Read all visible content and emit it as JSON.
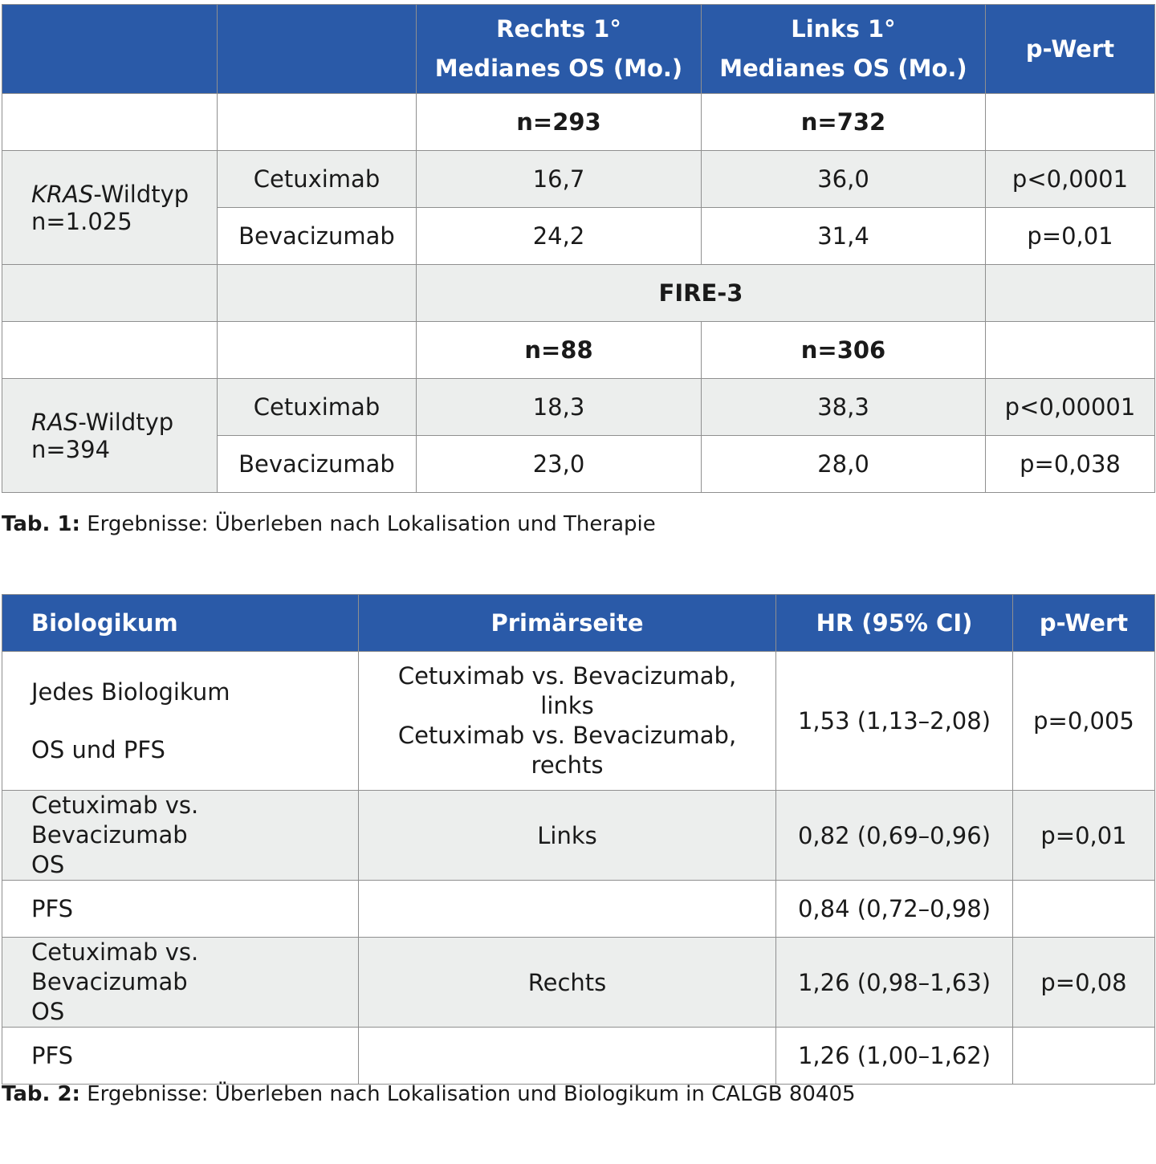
{
  "table1": {
    "header": {
      "col1": "",
      "col2": "",
      "col3_line1": "Rechts 1°",
      "col3_line2": "Medianes OS (Mo.)",
      "col4_line1": "Links 1°",
      "col4_line2": "Medianes OS (Mo.)",
      "col5": "p-Wert"
    },
    "n_row_1": {
      "rechts": "n=293",
      "links": "n=732"
    },
    "group1": {
      "label_italic": "KRAS",
      "label_rest": "-Wildtyp",
      "n": "n=1.025",
      "rows": [
        {
          "therapy": "Cetuximab",
          "rechts": "16,7",
          "links": "36,0",
          "p": "p<0,0001"
        },
        {
          "therapy": "Bevacizumab",
          "rechts": "24,2",
          "links": "31,4",
          "p": "p=0,01"
        }
      ]
    },
    "section_label": "FIRE-3",
    "n_row_2": {
      "rechts": "n=88",
      "links": "n=306"
    },
    "group2": {
      "label_italic": "RAS",
      "label_rest": "-Wildtyp",
      "n": "n=394",
      "rows": [
        {
          "therapy": "Cetuximab",
          "rechts": "18,3",
          "links": "38,3",
          "p": "p<0,00001"
        },
        {
          "therapy": "Bevacizumab",
          "rechts": "23,0",
          "links": "28,0",
          "p": "p=0,038"
        }
      ]
    },
    "caption_label": "Tab. 1:",
    "caption_text": " Ergebnisse: Überleben nach Lokalisation und Therapie"
  },
  "table2": {
    "header": {
      "col1": "Biologikum",
      "col2": "Primärseite",
      "col3": "HR (95% CI)",
      "col4": "p-Wert"
    },
    "rows": [
      {
        "bio_line1": "Jedes Biologikum",
        "bio_line2": "OS und PFS",
        "side_line1": "Cetuximab vs. Bevacizumab,",
        "side_line2": "links",
        "side_line3": "Cetuximab vs. Bevacizumab,",
        "side_line4": "rechts",
        "hr": "1,53 (1,13–2,08)",
        "p": "p=0,005"
      },
      {
        "bio_line1": "Cetuximab vs. Bevacizumab",
        "bio_line2": "OS",
        "side": "Links",
        "hr": "0,82 (0,69–0,96)",
        "p": "p=0,01"
      },
      {
        "bio": "PFS",
        "side": "",
        "hr": "0,84 (0,72–0,98)",
        "p": ""
      },
      {
        "bio_line1": "Cetuximab vs. Bevacizumab",
        "bio_line2": "OS",
        "side": "Rechts",
        "hr": "1,26 (0,98–1,63)",
        "p": "p=0,08"
      },
      {
        "bio": "PFS",
        "side": "",
        "hr": "1,26 (1,00–1,62)",
        "p": ""
      }
    ],
    "caption_label": "Tab. 2:",
    "caption_text": " Ergebnisse: Überleben nach Lokalisation und Biologikum in CALGB 80405"
  }
}
